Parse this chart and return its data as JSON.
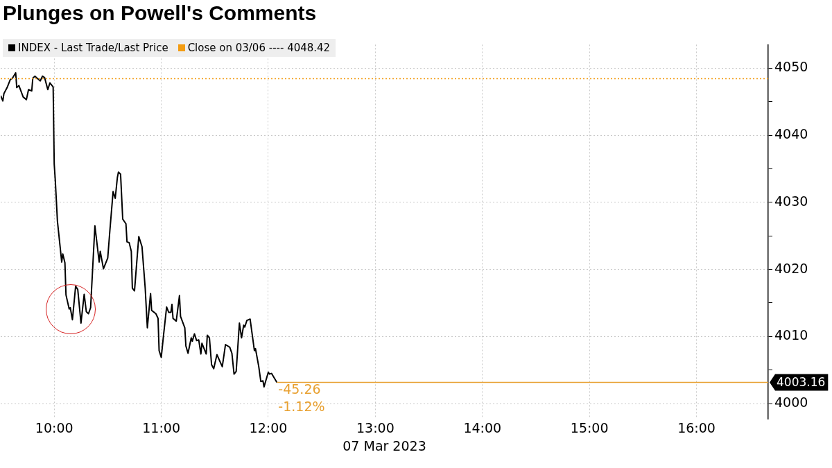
{
  "chart_data": {
    "type": "line",
    "title": "Plunges on Powell's Comments",
    "xlabel": "07 Mar 2023",
    "x": [
      9.5,
      9.52,
      9.53,
      9.56,
      9.59,
      9.61,
      9.64,
      9.65,
      9.67,
      9.71,
      9.74,
      9.76,
      9.79,
      9.8,
      9.82,
      9.84,
      9.87,
      9.89,
      9.91,
      9.94,
      9.96,
      9.99,
      10.0,
      10.01,
      10.03,
      10.07,
      10.08,
      10.1,
      10.11,
      10.14,
      10.15,
      10.17,
      10.2,
      10.22,
      10.25,
      10.28,
      10.3,
      10.32,
      10.34,
      10.38,
      10.42,
      10.43,
      10.46,
      10.5,
      10.52,
      10.55,
      10.57,
      10.59,
      10.6,
      10.62,
      10.64,
      10.67,
      10.68,
      10.7,
      10.72,
      10.73,
      10.75,
      10.79,
      10.82,
      10.85,
      10.87,
      10.9,
      10.91,
      10.95,
      10.97,
      10.98,
      11.0,
      11.02,
      11.05,
      11.07,
      11.09,
      11.1,
      11.11,
      11.14,
      11.17,
      11.18,
      11.22,
      11.23,
      11.25,
      11.28,
      11.29,
      11.31,
      11.33,
      11.35,
      11.37,
      11.38,
      11.42,
      11.43,
      11.45,
      11.47,
      11.49,
      11.52,
      11.57,
      11.6,
      11.64,
      11.66,
      11.68,
      11.7,
      11.73,
      11.75,
      11.77,
      11.78,
      11.8,
      11.83,
      11.87,
      11.88,
      11.91,
      11.93,
      11.95,
      11.96,
      12.0,
      12.01,
      12.03,
      12.08
    ],
    "series": [
      {
        "name": "INDEX - Last Trade/Last Price",
        "color": "#000000",
        "values": [
          4045.9,
          4045.1,
          4046.2,
          4047.1,
          4048.3,
          4048.5,
          4049.3,
          4047.1,
          4047.4,
          4045.7,
          4045.3,
          4046.8,
          4046.6,
          4048.5,
          4048.8,
          4048.5,
          4048.1,
          4048.8,
          4048.6,
          4046.8,
          4047.8,
          4047.2,
          4035.7,
          4033.3,
          4027.2,
          4021.1,
          4022.3,
          4021.0,
          4016.2,
          4014.1,
          4014.3,
          4012.5,
          4017.5,
          4017.0,
          4012.0,
          4016.3,
          4013.7,
          4013.4,
          4014.3,
          4026.5,
          4021.1,
          4022.7,
          4020.1,
          4021.7,
          4025.8,
          4031.6,
          4030.6,
          4033.7,
          4034.5,
          4034.2,
          4027.5,
          4026.8,
          4024.1,
          4024.0,
          4022.7,
          4017.2,
          4016.8,
          4024.9,
          4023.4,
          4017.2,
          4011.3,
          4016.4,
          4013.9,
          4013.4,
          4012.7,
          4007.9,
          4006.9,
          4010.0,
          4014.4,
          4013.6,
          4013.6,
          4014.8,
          4012.7,
          4012.3,
          4016.1,
          4013.0,
          4011.3,
          4008.6,
          4007.5,
          4009.8,
          4009.3,
          4010.4,
          4009.4,
          4009.5,
          4007.4,
          4009.0,
          4007.4,
          4010.2,
          4009.8,
          4005.8,
          4005.2,
          4007.3,
          4005.5,
          4008.8,
          4008.4,
          4007.5,
          4004.4,
          4004.8,
          4012.0,
          4009.8,
          4011.7,
          4011.4,
          4012.4,
          4012.6,
          4007.9,
          4008.2,
          4005.6,
          4003.3,
          4003.4,
          4002.5,
          4004.7,
          4004.4,
          4004.5,
          4003.16
        ]
      }
    ],
    "xlim": [
      9.5,
      16.67
    ],
    "xticks": [
      {
        "value": 10,
        "label": "10:00"
      },
      {
        "value": 11,
        "label": "11:00"
      },
      {
        "value": 12,
        "label": "12:00"
      },
      {
        "value": 13,
        "label": "13:00"
      },
      {
        "value": 14,
        "label": "14:00"
      },
      {
        "value": 15,
        "label": "15:00"
      },
      {
        "value": 16,
        "label": "16:00"
      }
    ],
    "ylim": [
      3997.7,
      4053.5
    ],
    "yticks": [
      4000,
      {
        "value": 4005,
        "label": null
      },
      4010,
      {
        "value": 4015,
        "label": null
      },
      4020,
      {
        "value": 4025,
        "label": null
      },
      4030,
      {
        "value": 4035,
        "label": null
      },
      4040,
      {
        "value": 4045,
        "label": null
      },
      4050
    ],
    "grid": true,
    "legend": "top left",
    "marker": "none",
    "line_style": "solid",
    "ref_lines": [
      {
        "axis": "y",
        "value": 4048.42,
        "label": "Close on 03/06 ---- 4048.42",
        "color": "#f39c12",
        "line_style": "dotted"
      },
      {
        "axis": "y",
        "value": 4003.16,
        "label": "4003.16",
        "color": "#e8a030",
        "line_style": "solid"
      }
    ],
    "annotations": [
      {
        "text": "-45.26",
        "x": 12.08,
        "y": 4003.16
      },
      {
        "text": "-1.12%",
        "x": 12.08,
        "y": 4003.16
      }
    ]
  }
}
